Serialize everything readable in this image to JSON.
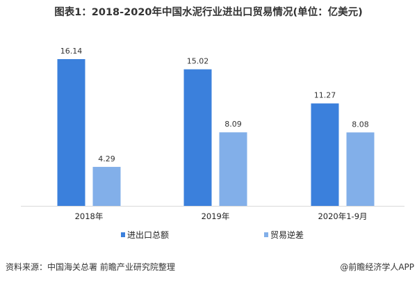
{
  "chart_data": {
    "type": "bar",
    "title": "图表1：2018-2020年中国水泥行业进出口贸易情况(单位：亿美元)",
    "categories": [
      "2018年",
      "2019年",
      "2020年1-9月"
    ],
    "series": [
      {
        "name": "进出口总额",
        "values": [
          16.14,
          15.02,
          11.27
        ],
        "color": "#3b80dc"
      },
      {
        "name": "贸易逆差",
        "values": [
          4.29,
          8.09,
          8.08
        ],
        "color": "#82afe9"
      }
    ],
    "ylim": [
      0,
      16.14
    ],
    "grid": false,
    "data_labels": true,
    "legend": "bottom"
  },
  "footer": {
    "source": "资料来源：中国海关总署 前瞻产业研究院整理",
    "brand": "@前瞻经济学人APP"
  }
}
